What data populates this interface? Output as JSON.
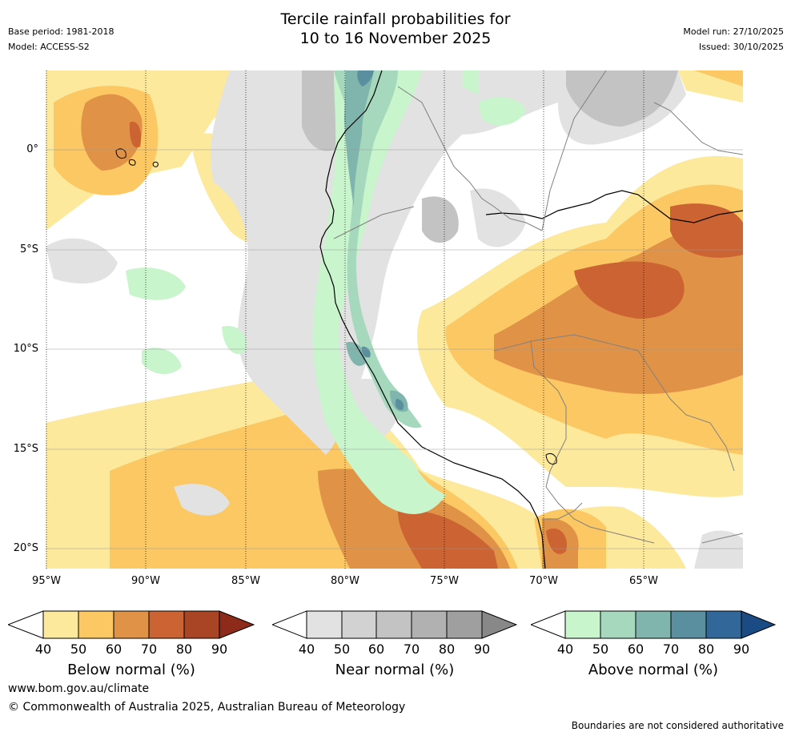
{
  "header": {
    "title": "Tercile rainfall probabilities for\n10 to 16 November 2025",
    "base_period": "Base period: 1981-2018",
    "model": "Model: ACCESS-S2",
    "model_run": "Model run: 27/10/2025",
    "issued": "Issued: 30/10/2025"
  },
  "map": {
    "lat_labels": [
      "0°",
      "5°S",
      "10°S",
      "15°S",
      "20°S"
    ],
    "lon_labels": [
      "95°W",
      "90°W",
      "85°W",
      "80°W",
      "75°W",
      "70°W",
      "65°W"
    ],
    "palette": {
      "below": [
        "#fde99b",
        "#fbc864",
        "#e09346",
        "#cb6332",
        "#a94425",
        "#8e2a1a"
      ],
      "near": [
        "#e2e2e2",
        "#d2d2d2",
        "#c3c3c3",
        "#b1b1b1",
        "#9f9f9f",
        "#888888"
      ],
      "above": [
        "#c8f5cc",
        "#a6d8bd",
        "#80b5ad",
        "#5a8fa0",
        "#32679a",
        "#1b4b84"
      ],
      "coast": "#000000",
      "borders": "#808080"
    }
  },
  "legend": {
    "colorbars": [
      {
        "title": "Below normal (%)",
        "ticks": [
          "40",
          "50",
          "60",
          "70",
          "80",
          "90"
        ]
      },
      {
        "title": "Near normal (%)",
        "ticks": [
          "40",
          "50",
          "60",
          "70",
          "80",
          "90"
        ]
      },
      {
        "title": "Above normal (%)",
        "ticks": [
          "40",
          "50",
          "60",
          "70",
          "80",
          "90"
        ]
      }
    ]
  },
  "footer": {
    "website": "www.bom.gov.au/climate",
    "copyright": "© Commonwealth of Australia 2025, Australian Bureau of Meteorology",
    "disclaimer": "Boundaries are not considered authoritative"
  }
}
